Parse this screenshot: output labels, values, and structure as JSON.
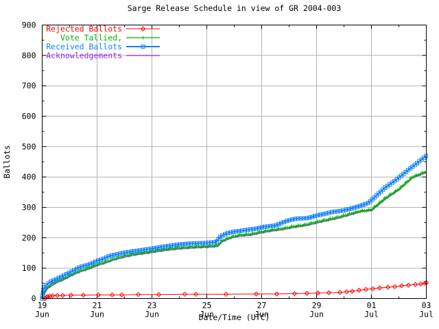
{
  "chart_data": {
    "type": "line",
    "title": "Sarge Release Schedule in view of GR 2004-003",
    "xlabel": "Date/Time (UTC)",
    "ylabel": "Ballots",
    "ylim": [
      0,
      900
    ],
    "xlim": [
      0,
      14
    ],
    "ytick_interval": 100,
    "yminor_interval": 50,
    "ytick_labels": [
      "0",
      "100",
      "200",
      "300",
      "400",
      "500",
      "600",
      "700",
      "800",
      "900"
    ],
    "xticks": [
      {
        "day": 0,
        "label": [
          "19",
          "Jun"
        ]
      },
      {
        "day": 2,
        "label": [
          "21",
          "Jun"
        ]
      },
      {
        "day": 4,
        "label": [
          "23",
          "Jun"
        ]
      },
      {
        "day": 6,
        "label": [
          "25",
          "Jun"
        ]
      },
      {
        "day": 8,
        "label": [
          "27",
          "Jun"
        ]
      },
      {
        "day": 10,
        "label": [
          "29",
          "Jun"
        ]
      },
      {
        "day": 12,
        "label": [
          "01",
          "Jul"
        ]
      },
      {
        "day": 14,
        "label": [
          "03",
          "Jul"
        ]
      }
    ],
    "xminor_days": [
      1,
      3,
      5,
      7,
      9,
      11,
      13
    ],
    "grid": true,
    "grid_color": "#b2b2b2",
    "axis_color": "#000000",
    "legend_position": "top-left",
    "draw_order": [
      "Acknowledgements",
      "Vote Tallied,",
      "Received Ballots",
      "Rejected Ballots"
    ],
    "series": [
      {
        "name": "Rejected Ballots",
        "color": "#ff0000",
        "marker": "diamond",
        "line_width": 1,
        "marker_spacing": 0,
        "points": [
          [
            0.1,
            0
          ],
          [
            0.15,
            4
          ],
          [
            0.2,
            6
          ],
          [
            0.28,
            8
          ],
          [
            0.38,
            9
          ],
          [
            0.55,
            10
          ],
          [
            0.75,
            10
          ],
          [
            1.05,
            11
          ],
          [
            1.5,
            11
          ],
          [
            2.05,
            12
          ],
          [
            2.55,
            12
          ],
          [
            2.9,
            12
          ],
          [
            3.5,
            13
          ],
          [
            4.25,
            13
          ],
          [
            5.2,
            14
          ],
          [
            5.6,
            14
          ],
          [
            6.7,
            14
          ],
          [
            7.8,
            15
          ],
          [
            8.55,
            15
          ],
          [
            9.2,
            16
          ],
          [
            9.65,
            17
          ],
          [
            10.05,
            18
          ],
          [
            10.45,
            19
          ],
          [
            10.85,
            20
          ],
          [
            11.1,
            22
          ],
          [
            11.3,
            24
          ],
          [
            11.55,
            27
          ],
          [
            11.8,
            30
          ],
          [
            12.05,
            32
          ],
          [
            12.3,
            35
          ],
          [
            12.6,
            37
          ],
          [
            12.85,
            39
          ],
          [
            13.1,
            42
          ],
          [
            13.35,
            44
          ],
          [
            13.6,
            46
          ],
          [
            13.8,
            48
          ],
          [
            13.95,
            50
          ],
          [
            14.0,
            52
          ]
        ]
      },
      {
        "name": "Vote Tallied,",
        "color": "#00b400",
        "marker": "plus",
        "line_width": 1.3,
        "marker_spacing": 3.2,
        "points": [
          [
            0,
            0
          ],
          [
            0.06,
            18
          ],
          [
            0.2,
            38
          ],
          [
            0.5,
            55
          ],
          [
            0.8,
            66
          ],
          [
            1.1,
            80
          ],
          [
            1.4,
            92
          ],
          [
            1.7,
            100
          ],
          [
            2.0,
            112
          ],
          [
            2.3,
            120
          ],
          [
            2.6,
            130
          ],
          [
            3.0,
            140
          ],
          [
            3.4,
            147
          ],
          [
            3.8,
            152
          ],
          [
            4.2,
            158
          ],
          [
            4.6,
            163
          ],
          [
            5.0,
            167
          ],
          [
            5.5,
            170
          ],
          [
            6.0,
            172
          ],
          [
            6.4,
            175
          ],
          [
            6.55,
            190
          ],
          [
            6.9,
            203
          ],
          [
            7.2,
            209
          ],
          [
            7.6,
            212
          ],
          [
            8.0,
            220
          ],
          [
            8.4,
            226
          ],
          [
            8.8,
            231
          ],
          [
            9.2,
            238
          ],
          [
            9.6,
            243
          ],
          [
            10.0,
            252
          ],
          [
            10.4,
            260
          ],
          [
            10.8,
            268
          ],
          [
            11.2,
            278
          ],
          [
            11.6,
            288
          ],
          [
            12.0,
            292
          ],
          [
            12.5,
            330
          ],
          [
            13.0,
            360
          ],
          [
            13.5,
            400
          ],
          [
            14.0,
            418
          ]
        ]
      },
      {
        "name": "Received Ballots",
        "color": "#1080ff",
        "marker": "square",
        "line_width": 2,
        "marker_spacing": 4.2,
        "points": [
          [
            0,
            0
          ],
          [
            0.05,
            32
          ],
          [
            0.12,
            42
          ],
          [
            0.3,
            55
          ],
          [
            0.5,
            63
          ],
          [
            0.7,
            72
          ],
          [
            0.9,
            81
          ],
          [
            1.1,
            90
          ],
          [
            1.3,
            100
          ],
          [
            1.5,
            107
          ],
          [
            1.7,
            111
          ],
          [
            2.0,
            124
          ],
          [
            2.2,
            129
          ],
          [
            2.4,
            138
          ],
          [
            2.6,
            143
          ],
          [
            2.8,
            147
          ],
          [
            3.0,
            151
          ],
          [
            3.3,
            155
          ],
          [
            3.6,
            159
          ],
          [
            4.0,
            164
          ],
          [
            4.3,
            169
          ],
          [
            4.6,
            173
          ],
          [
            5.0,
            178
          ],
          [
            5.4,
            181
          ],
          [
            6.0,
            183
          ],
          [
            6.35,
            186
          ],
          [
            6.5,
            205
          ],
          [
            6.75,
            215
          ],
          [
            7.0,
            220
          ],
          [
            7.4,
            225
          ],
          [
            7.8,
            230
          ],
          [
            8.1,
            236
          ],
          [
            8.5,
            240
          ],
          [
            8.9,
            255
          ],
          [
            9.2,
            262
          ],
          [
            9.7,
            265
          ],
          [
            10.0,
            273
          ],
          [
            10.3,
            279
          ],
          [
            10.6,
            285
          ],
          [
            11.0,
            290
          ],
          [
            11.3,
            297
          ],
          [
            11.6,
            305
          ],
          [
            11.9,
            315
          ],
          [
            12.1,
            332
          ],
          [
            12.5,
            365
          ],
          [
            12.9,
            390
          ],
          [
            13.3,
            420
          ],
          [
            13.7,
            448
          ],
          [
            14.0,
            470
          ]
        ]
      },
      {
        "name": "Acknowledgements",
        "color": "#a020f0",
        "marker": "none",
        "line_width": 1.3,
        "marker_spacing": 0,
        "points": [
          [
            0,
            0
          ],
          [
            0.06,
            14
          ],
          [
            0.2,
            33
          ],
          [
            0.5,
            50
          ],
          [
            0.8,
            62
          ],
          [
            1.1,
            76
          ],
          [
            1.4,
            88
          ],
          [
            1.7,
            96
          ],
          [
            2.0,
            108
          ],
          [
            2.3,
            116
          ],
          [
            2.6,
            126
          ],
          [
            3.0,
            136
          ],
          [
            3.4,
            143
          ],
          [
            3.8,
            148
          ],
          [
            4.2,
            154
          ],
          [
            4.6,
            159
          ],
          [
            5.0,
            163
          ],
          [
            5.5,
            166
          ],
          [
            6.0,
            168
          ],
          [
            6.4,
            171
          ],
          [
            6.55,
            186
          ],
          [
            6.9,
            199
          ],
          [
            7.2,
            205
          ],
          [
            7.6,
            208
          ],
          [
            8.0,
            216
          ],
          [
            8.4,
            222
          ],
          [
            8.8,
            227
          ],
          [
            9.2,
            234
          ],
          [
            9.6,
            239
          ],
          [
            10.0,
            248
          ],
          [
            10.4,
            256
          ],
          [
            10.8,
            264
          ],
          [
            11.2,
            274
          ],
          [
            11.6,
            285
          ],
          [
            12.0,
            289
          ],
          [
            12.5,
            326
          ],
          [
            13.0,
            357
          ],
          [
            13.5,
            397
          ],
          [
            14.0,
            414
          ]
        ]
      }
    ]
  }
}
